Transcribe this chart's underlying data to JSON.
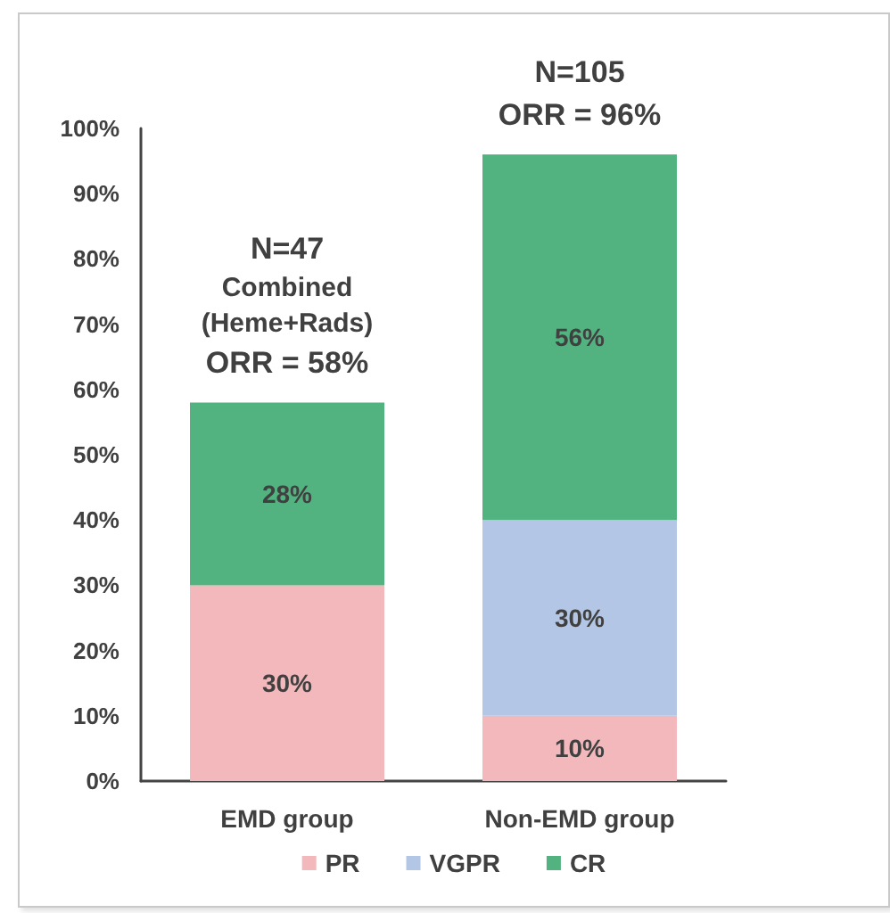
{
  "chart_data": {
    "type": "bar",
    "stacked": true,
    "categories": [
      "EMD group",
      "Non-EMD group"
    ],
    "series": [
      {
        "name": "PR",
        "color": "#f2b8bb",
        "values": [
          30,
          10
        ],
        "value_labels": [
          "30%",
          "10%"
        ]
      },
      {
        "name": "VGPR",
        "color": "#b4c6e6",
        "values": [
          null,
          30
        ],
        "value_labels": [
          null,
          "30%"
        ]
      },
      {
        "name": "CR",
        "color": "#52b380",
        "values": [
          28,
          56
        ],
        "value_labels": [
          "28%",
          "56%"
        ]
      }
    ],
    "ylim": [
      0,
      100
    ],
    "yticks": [
      {
        "value": 0,
        "label": "0%"
      },
      {
        "value": 10,
        "label": "10%"
      },
      {
        "value": 20,
        "label": "20%"
      },
      {
        "value": 30,
        "label": "30%"
      },
      {
        "value": 40,
        "label": "40%"
      },
      {
        "value": 50,
        "label": "50%"
      },
      {
        "value": 60,
        "label": "60%"
      },
      {
        "value": 70,
        "label": "70%"
      },
      {
        "value": 80,
        "label": "80%"
      },
      {
        "value": 90,
        "label": "90%"
      },
      {
        "value": 100,
        "label": "100%"
      }
    ],
    "grid": false,
    "legend": "bottom",
    "annotations": [
      {
        "text": "N=47\nCombined\n(Heme+Rads)\nORR = 58%",
        "x": "EMD group",
        "y": 58
      },
      {
        "text": "N=105\nORR = 96%",
        "x": "Non-EMD group",
        "y": 96
      }
    ]
  }
}
